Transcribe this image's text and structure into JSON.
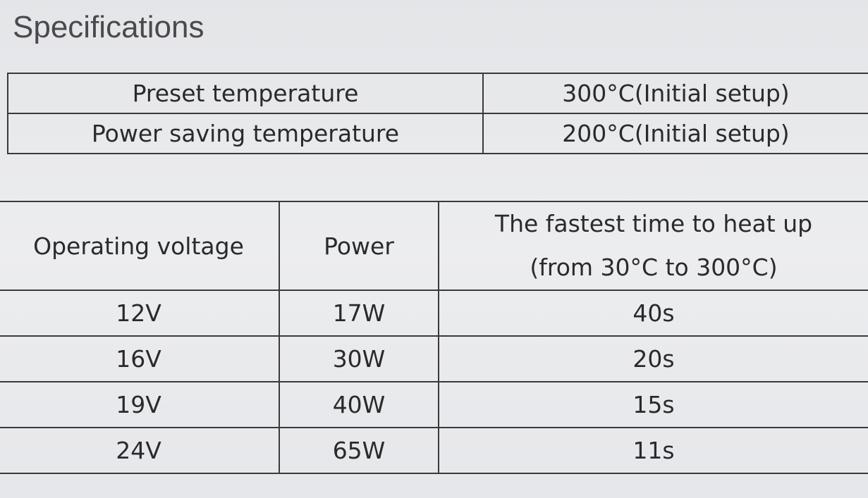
{
  "title": "Specifications",
  "temperature_table": {
    "rows": [
      [
        "Preset temperature",
        "300°C(Initial setup)"
      ],
      [
        "Power saving temperature",
        "200°C(Initial setup)"
      ]
    ]
  },
  "heating_table": {
    "header": [
      "Operating voltage",
      "Power",
      [
        "The fastest time to heat up",
        "(from 30°C to 300°C)"
      ]
    ],
    "rows": [
      [
        "12V",
        "17W",
        "40s"
      ],
      [
        "16V",
        "30W",
        "20s"
      ],
      [
        "19V",
        "40W",
        "15s"
      ],
      [
        "24V",
        "65W",
        "11s"
      ]
    ]
  }
}
